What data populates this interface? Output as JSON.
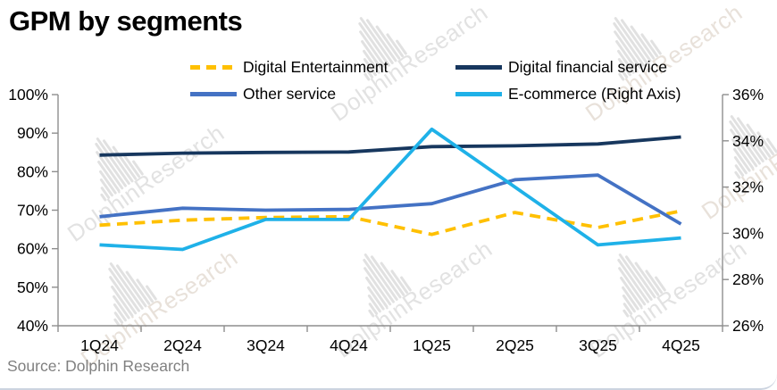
{
  "title": "GPM by segments",
  "source": "Source: Dolphin Research",
  "watermark": {
    "text": "DolphinResearch",
    "icon": "dolphin-waveform-icon"
  },
  "chart_data": {
    "type": "line",
    "title": "GPM by segments",
    "categories": [
      "1Q24",
      "2Q24",
      "3Q24",
      "4Q24",
      "1Q25",
      "2Q25",
      "3Q25",
      "4Q25"
    ],
    "left_axis": {
      "min": 40,
      "max": 100,
      "tick_values": [
        100,
        90,
        80,
        70,
        60,
        50,
        40
      ],
      "tick_labels": [
        "100%",
        "90%",
        "80%",
        "70%",
        "60%",
        "50%",
        "40%"
      ]
    },
    "right_axis": {
      "min": 26,
      "max": 36,
      "tick_values": [
        36,
        34,
        32,
        30,
        28,
        26
      ],
      "tick_labels": [
        "36%",
        "34%",
        "32%",
        "30%",
        "28%",
        "26%"
      ]
    },
    "grid": false,
    "legend_position": "top",
    "series": [
      {
        "name": "Digital Entertainment",
        "axis": "left",
        "style": "dashed",
        "color": "#FFC000",
        "values": [
          66.1,
          67.4,
          68.1,
          68.3,
          63.7,
          69.4,
          65.5,
          69.8
        ]
      },
      {
        "name": "Digital financial service",
        "axis": "left",
        "style": "solid",
        "color": "#17375E",
        "values": [
          84.3,
          84.8,
          85.0,
          85.1,
          86.5,
          86.7,
          87.2,
          89.0
        ]
      },
      {
        "name": "Other service",
        "axis": "left",
        "style": "solid",
        "color": "#4472C4",
        "values": [
          68.3,
          70.5,
          70.0,
          70.2,
          71.7,
          77.9,
          79.1,
          66.4
        ]
      },
      {
        "name": "E-commerce (Right Axis)",
        "axis": "right",
        "style": "solid",
        "color": "#1FB1E8",
        "values": [
          29.5,
          29.3,
          30.6,
          30.6,
          34.5,
          32.0,
          29.5,
          29.8
        ]
      }
    ]
  }
}
